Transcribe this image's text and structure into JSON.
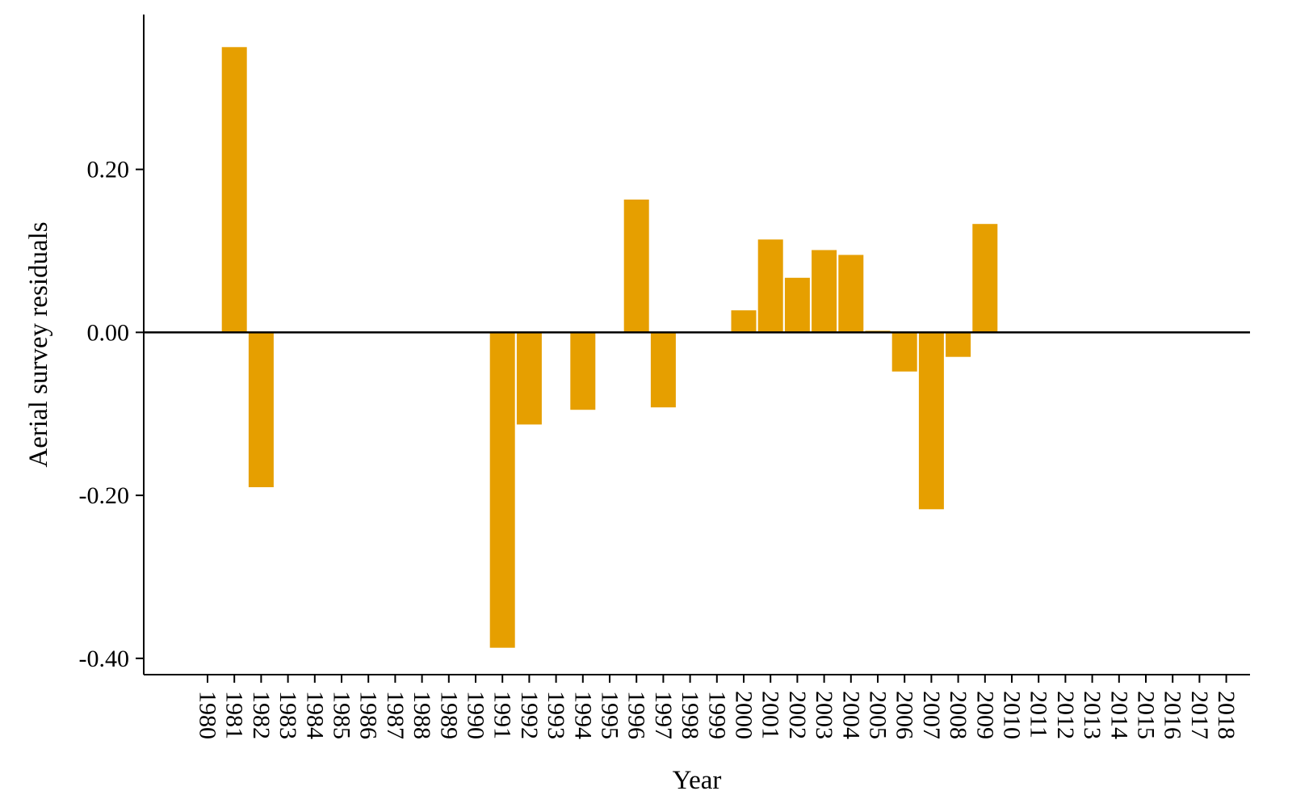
{
  "chart_data": {
    "type": "bar",
    "title": "",
    "xlabel": "Year",
    "ylabel": "Aerial survey residuals",
    "ylim": [
      -0.42,
      0.39
    ],
    "yticks": [
      -0.4,
      -0.2,
      0.0,
      0.2
    ],
    "ytick_labels": [
      "-0.40",
      "-0.20",
      "0.00",
      "0.20"
    ],
    "grid": false,
    "bar_color": "#E69F00",
    "categories": [
      "1980",
      "1981",
      "1982",
      "1983",
      "1984",
      "1985",
      "1986",
      "1987",
      "1988",
      "1989",
      "1990",
      "1991",
      "1992",
      "1993",
      "1994",
      "1995",
      "1996",
      "1997",
      "1998",
      "1999",
      "2000",
      "2001",
      "2002",
      "2003",
      "2004",
      "2005",
      "2006",
      "2007",
      "2008",
      "2009",
      "2010",
      "2011",
      "2012",
      "2013",
      "2014",
      "2015",
      "2016",
      "2017",
      "2018"
    ],
    "values": [
      null,
      0.35,
      -0.19,
      null,
      null,
      null,
      null,
      null,
      null,
      null,
      null,
      -0.387,
      -0.113,
      null,
      -0.095,
      null,
      0.163,
      -0.092,
      null,
      null,
      0.027,
      0.114,
      0.067,
      0.101,
      0.095,
      0.002,
      -0.048,
      -0.217,
      -0.03,
      0.133,
      null,
      null,
      null,
      null,
      null,
      null,
      null,
      null,
      null
    ]
  }
}
